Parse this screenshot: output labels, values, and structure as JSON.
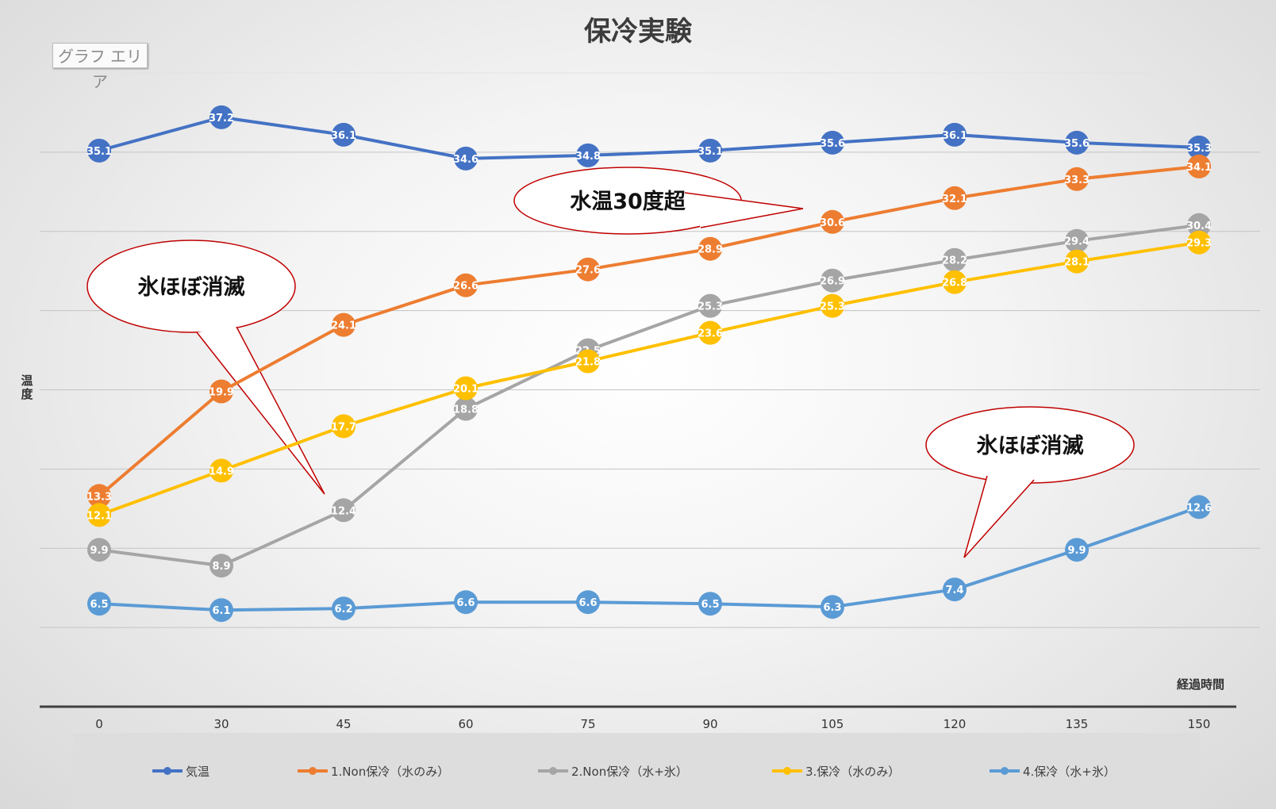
{
  "chart_data": {
    "type": "line",
    "title": "保冷実験",
    "chart_area_tag": "グラフ エリア",
    "xlabel": "経過時間",
    "ylabel": "温度",
    "x": [
      0,
      30,
      45,
      60,
      75,
      90,
      105,
      120,
      135,
      150
    ],
    "ylim": [
      0,
      40
    ],
    "grid": true,
    "legend_position": "bottom",
    "series": [
      {
        "name": "気温",
        "color": "#4472C4",
        "values": [
          35.1,
          37.2,
          36.1,
          34.6,
          34.8,
          35.1,
          35.6,
          36.1,
          35.6,
          35.3
        ]
      },
      {
        "name": "1.Non保冷（水のみ）",
        "color": "#ED7D31",
        "values": [
          13.3,
          19.9,
          24.1,
          26.6,
          27.6,
          28.9,
          30.6,
          32.1,
          33.3,
          34.1
        ]
      },
      {
        "name": "2.Non保冷（水+氷）",
        "color": "#A5A5A5",
        "values": [
          9.9,
          8.9,
          12.4,
          18.8,
          22.5,
          25.3,
          26.9,
          28.2,
          29.4,
          30.4
        ]
      },
      {
        "name": "3.保冷（水のみ）",
        "color": "#FFC000",
        "values": [
          12.1,
          14.9,
          17.7,
          20.1,
          21.8,
          23.6,
          25.3,
          26.8,
          28.1,
          29.3
        ]
      },
      {
        "name": "4.保冷（水+氷）",
        "color": "#5B9BD5",
        "values": [
          6.5,
          6.1,
          6.2,
          6.6,
          6.6,
          6.5,
          6.3,
          7.4,
          9.9,
          12.6
        ]
      }
    ],
    "annotations": [
      {
        "text": "水温30度超"
      },
      {
        "text": "氷ほぼ消滅"
      },
      {
        "text": "氷ほぼ消滅"
      }
    ]
  }
}
